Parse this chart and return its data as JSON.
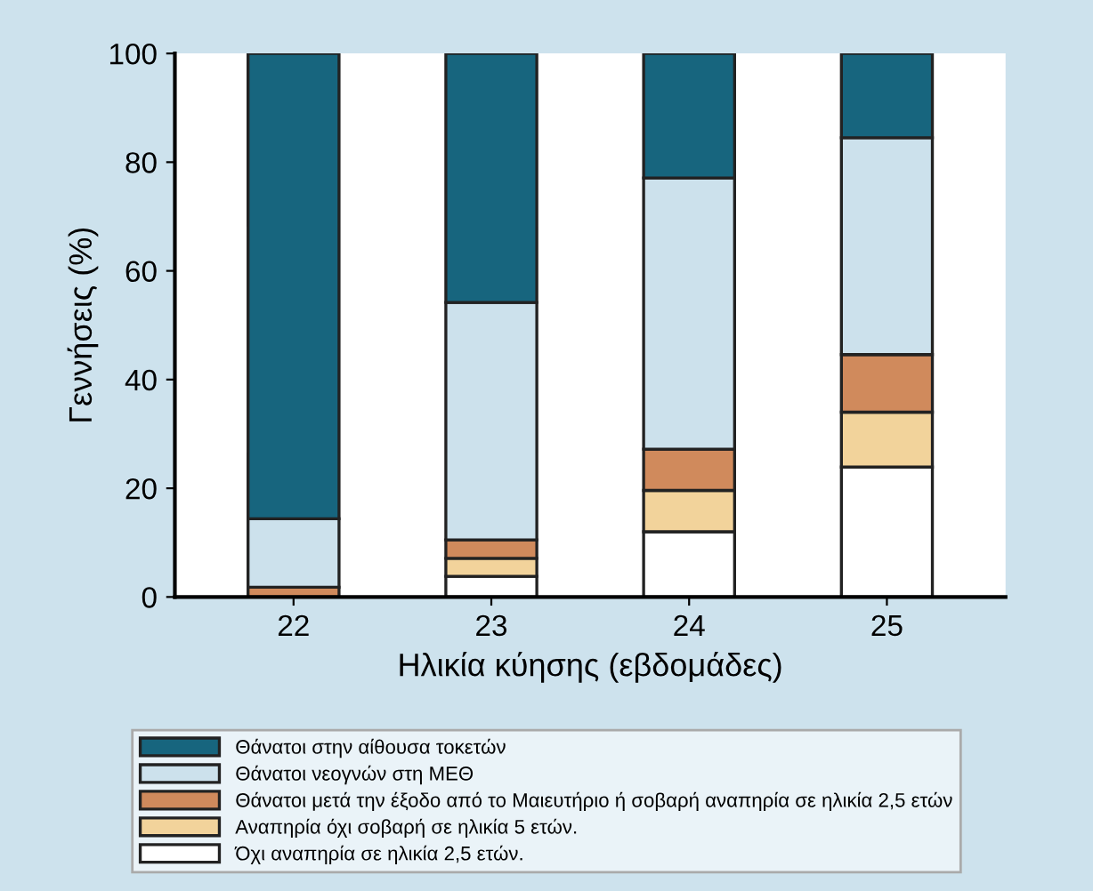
{
  "chart_data": {
    "type": "bar",
    "stacked": true,
    "xlabel": "Ηλικία κύησης (εβδομάδες)",
    "ylabel": "Γεννήσεις (%)",
    "categories": [
      "22",
      "23",
      "24",
      "25"
    ],
    "series": [
      {
        "name": "Όχι αναπηρία σε ηλικία 2,5 ετών.",
        "color": "#ffffff",
        "values": [
          null,
          3.8,
          12.0,
          23.9
        ]
      },
      {
        "name": "Αναπηρία όχι σοβαρή σε ηλικία 5 ετών.",
        "color": "#f2d39b",
        "values": [
          null,
          3.3,
          7.6,
          10.1
        ]
      },
      {
        "name": "Θάνατοι μετά την έξοδο από το Μαιευτήριο ή σοβαρή αναπηρία σε ηλικία 2,5 ετών",
        "color": "#d08a5c",
        "values": [
          1.8,
          3.4,
          7.6,
          10.6
        ]
      },
      {
        "name": "Θάνατοι νεογνών στη ΜΕΘ",
        "color": "#cce1ec",
        "values": [
          12.6,
          43.7,
          49.9,
          39.9
        ]
      },
      {
        "name": "Θάνατοι στην αίθουσα τοκετών",
        "color": "#17657e",
        "values": [
          85.6,
          45.8,
          22.9,
          15.5
        ]
      }
    ],
    "ylim": [
      0,
      100
    ],
    "yticks": [
      0,
      20,
      40,
      60,
      80,
      100
    ],
    "grid": false,
    "legend": "bottom"
  }
}
